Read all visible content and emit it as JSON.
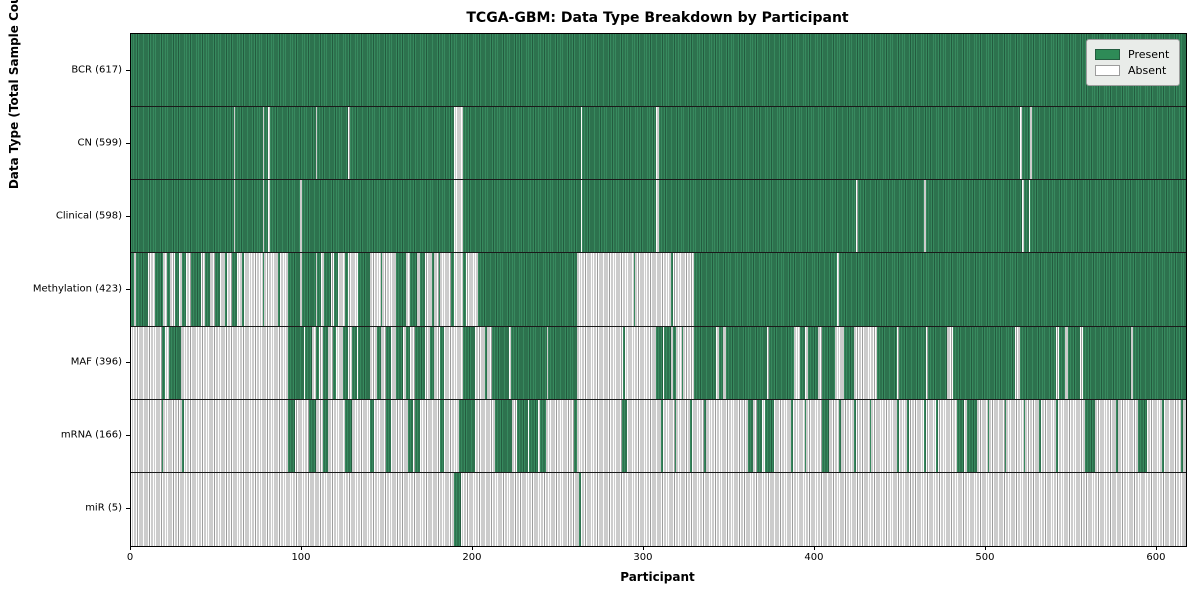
{
  "chart_data": {
    "type": "heatmap",
    "title": "TCGA-GBM: Data Type Breakdown by Participant",
    "xlabel": "Participant",
    "ylabel": "Data Type (Total Sample Count)",
    "x_min": 0,
    "x_max": 617,
    "x_ticks": [
      0,
      100,
      200,
      300,
      400,
      500,
      600
    ],
    "grid": false,
    "legend": {
      "position": "upper right",
      "entries": [
        {
          "label": "Present",
          "color": "#2e8b57",
          "edge": "#235c3f"
        },
        {
          "label": "Absent",
          "color": "#ffffff",
          "edge": "#9c9c9c"
        }
      ]
    },
    "colors": {
      "present_fill": "#2e8b57",
      "present_edge": "#235c3f",
      "absent_fill": "#ffffff",
      "absent_edge": "#9c9c9c",
      "row_divider": "#1a1a1a"
    },
    "rows": [
      {
        "name": "BCR",
        "label": "BCR (617)",
        "total": 617,
        "present_segments": [
          [
            0,
            617
          ]
        ]
      },
      {
        "name": "CN",
        "label": "CN (599)",
        "total": 599,
        "present_segments": [
          [
            0,
            60
          ],
          [
            61,
            77
          ],
          [
            78,
            80
          ],
          [
            81,
            108
          ],
          [
            109,
            127
          ],
          [
            128,
            189
          ],
          [
            194,
            263
          ],
          [
            264,
            307
          ],
          [
            309,
            520
          ],
          [
            521,
            526
          ],
          [
            527,
            617
          ]
        ]
      },
      {
        "name": "Clinical",
        "label": "Clinical (598)",
        "total": 598,
        "present_segments": [
          [
            0,
            60
          ],
          [
            61,
            77
          ],
          [
            78,
            80
          ],
          [
            81,
            99
          ],
          [
            100,
            189
          ],
          [
            194,
            263
          ],
          [
            264,
            307
          ],
          [
            309,
            424
          ],
          [
            425,
            464
          ],
          [
            465,
            521
          ],
          [
            522,
            525
          ],
          [
            526,
            617
          ]
        ]
      },
      {
        "name": "Methylation",
        "label": "Methylation (423)",
        "total": 423,
        "present_segments": [
          [
            0,
            2
          ],
          [
            3,
            10
          ],
          [
            14,
            19
          ],
          [
            21,
            23
          ],
          [
            26,
            28
          ],
          [
            30,
            32
          ],
          [
            35,
            41
          ],
          [
            43,
            46
          ],
          [
            49,
            52
          ],
          [
            55,
            56
          ],
          [
            59,
            62
          ],
          [
            65,
            66
          ],
          [
            77,
            78
          ],
          [
            86,
            87
          ],
          [
            92,
            99
          ],
          [
            100,
            108
          ],
          [
            109,
            111
          ],
          [
            113,
            117
          ],
          [
            119,
            121
          ],
          [
            125,
            127
          ],
          [
            133,
            140
          ],
          [
            146,
            147
          ],
          [
            155,
            161
          ],
          [
            163,
            167
          ],
          [
            169,
            172
          ],
          [
            176,
            177
          ],
          [
            180,
            181
          ],
          [
            187,
            189
          ],
          [
            194,
            196
          ],
          [
            203,
            261
          ],
          [
            294,
            295
          ],
          [
            316,
            317
          ],
          [
            329,
            413
          ],
          [
            414,
            617
          ]
        ]
      },
      {
        "name": "MAF",
        "label": "MAF (396)",
        "total": 396,
        "present_segments": [
          [
            18,
            20
          ],
          [
            22,
            29
          ],
          [
            92,
            101
          ],
          [
            102,
            106
          ],
          [
            108,
            110
          ],
          [
            112,
            115
          ],
          [
            118,
            120
          ],
          [
            124,
            127
          ],
          [
            129,
            132
          ],
          [
            133,
            140
          ],
          [
            144,
            146
          ],
          [
            149,
            152
          ],
          [
            155,
            159
          ],
          [
            161,
            163
          ],
          [
            166,
            172
          ],
          [
            175,
            177
          ],
          [
            181,
            183
          ],
          [
            194,
            201
          ],
          [
            207,
            208
          ],
          [
            211,
            221
          ],
          [
            222,
            243
          ],
          [
            244,
            261
          ],
          [
            288,
            289
          ],
          [
            307,
            311
          ],
          [
            312,
            316
          ],
          [
            317,
            319
          ],
          [
            322,
            323
          ],
          [
            329,
            342
          ],
          [
            344,
            346
          ],
          [
            348,
            372
          ],
          [
            373,
            388
          ],
          [
            391,
            394
          ],
          [
            396,
            402
          ],
          [
            404,
            412
          ],
          [
            417,
            423
          ],
          [
            436,
            448
          ],
          [
            449,
            465
          ],
          [
            466,
            477
          ],
          [
            481,
            517
          ],
          [
            520,
            541
          ],
          [
            543,
            546
          ],
          [
            548,
            555
          ],
          [
            557,
            585
          ],
          [
            586,
            617
          ]
        ]
      },
      {
        "name": "mRNA",
        "label": "mRNA (166)",
        "total": 166,
        "present_segments": [
          [
            18,
            19
          ],
          [
            30,
            31
          ],
          [
            92,
            96
          ],
          [
            104,
            108
          ],
          [
            112,
            115
          ],
          [
            125,
            129
          ],
          [
            140,
            142
          ],
          [
            149,
            152
          ],
          [
            162,
            165
          ],
          [
            166,
            169
          ],
          [
            181,
            183
          ],
          [
            192,
            201
          ],
          [
            213,
            223
          ],
          [
            226,
            232
          ],
          [
            233,
            238
          ],
          [
            239,
            243
          ],
          [
            259,
            261
          ],
          [
            287,
            290
          ],
          [
            310,
            311
          ],
          [
            318,
            319
          ],
          [
            327,
            328
          ],
          [
            335,
            336
          ],
          [
            361,
            364
          ],
          [
            366,
            369
          ],
          [
            371,
            376
          ],
          [
            386,
            387
          ],
          [
            394,
            395
          ],
          [
            404,
            408
          ],
          [
            414,
            415
          ],
          [
            423,
            424
          ],
          [
            432,
            433
          ],
          [
            448,
            449
          ],
          [
            454,
            455
          ],
          [
            464,
            465
          ],
          [
            471,
            472
          ],
          [
            483,
            487
          ],
          [
            489,
            495
          ],
          [
            501,
            502
          ],
          [
            511,
            512
          ],
          [
            522,
            523
          ],
          [
            531,
            532
          ],
          [
            541,
            542
          ],
          [
            558,
            564
          ],
          [
            576,
            577
          ],
          [
            589,
            594
          ],
          [
            603,
            604
          ],
          [
            614,
            615
          ]
        ]
      },
      {
        "name": "miR",
        "label": "miR (5)",
        "total": 5,
        "present_segments": [
          [
            189,
            193
          ],
          [
            262,
            263
          ]
        ]
      }
    ]
  }
}
